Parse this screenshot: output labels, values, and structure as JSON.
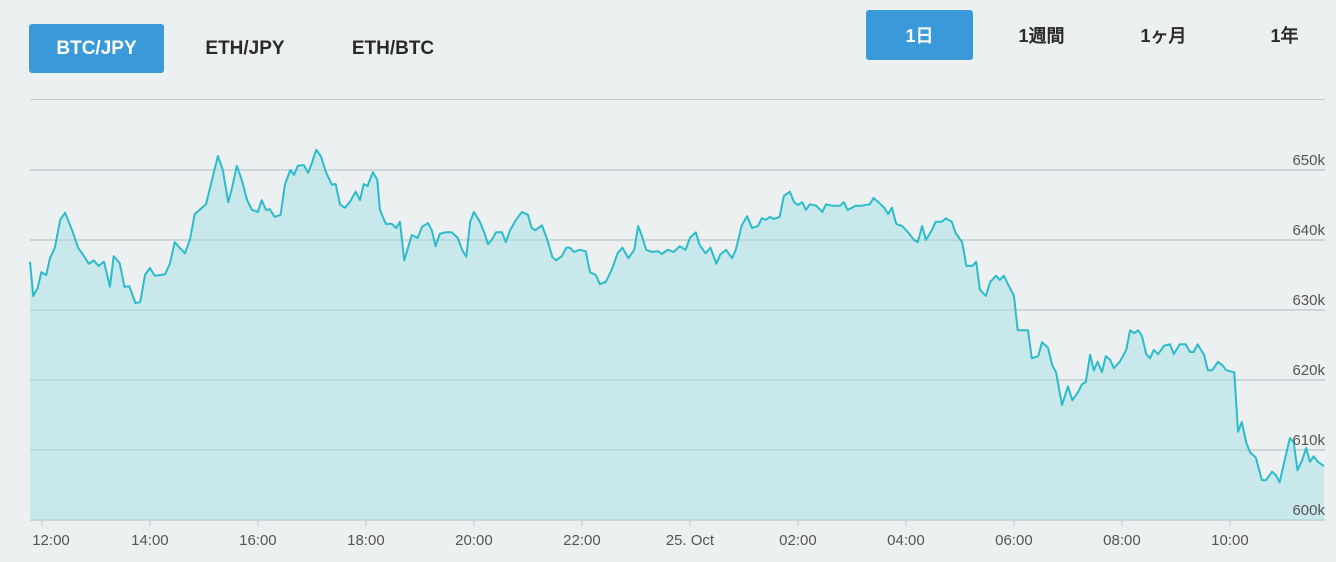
{
  "pair_tabs": [
    "BTC/JPY",
    "ETH/JPY",
    "ETH/BTC"
  ],
  "period_tabs": [
    "1日",
    "1週間",
    "1ヶ月",
    "1年"
  ],
  "chart_data": {
    "type": "area",
    "color": "#2bbccb",
    "fill": "#c4e7eb",
    "grid": true,
    "xlim": [
      11.78,
      35.76
    ],
    "xticks": [
      {
        "value": 12,
        "label": "12:00"
      },
      {
        "value": 14,
        "label": "14:00"
      },
      {
        "value": 16,
        "label": "16:00"
      },
      {
        "value": 18,
        "label": "18:00"
      },
      {
        "value": 20,
        "label": "20:00"
      },
      {
        "value": 22,
        "label": "22:00"
      },
      {
        "value": 24,
        "label": "25. Oct"
      },
      {
        "value": 26,
        "label": "02:00"
      },
      {
        "value": 28,
        "label": "04:00"
      },
      {
        "value": 30,
        "label": "06:00"
      },
      {
        "value": 32,
        "label": "08:00"
      },
      {
        "value": 34,
        "label": "10:00"
      }
    ],
    "ylim": [
      600000,
      660000
    ],
    "yticks": [
      {
        "value": 600000,
        "label": "600k"
      },
      {
        "value": 610000,
        "label": "610k"
      },
      {
        "value": 620000,
        "label": "620k"
      },
      {
        "value": 630000,
        "label": "630k"
      },
      {
        "value": 640000,
        "label": "640k"
      },
      {
        "value": 650000,
        "label": "650k"
      }
    ],
    "x": [
      11.78,
      11.84,
      11.92,
      11.99,
      12.08,
      12.15,
      12.24,
      12.34,
      12.43,
      12.56,
      12.67,
      12.78,
      12.87,
      12.96,
      13.05,
      13.15,
      13.26,
      13.33,
      13.44,
      13.53,
      13.62,
      13.73,
      13.82,
      13.91,
      14.0,
      14.09,
      14.28,
      14.37,
      14.46,
      14.55,
      14.65,
      14.74,
      14.83,
      14.92,
      15.04,
      15.15,
      15.26,
      15.35,
      15.45,
      15.52,
      15.61,
      15.7,
      15.8,
      15.89,
      16.0,
      16.07,
      16.15,
      16.22,
      16.31,
      16.42,
      16.5,
      16.6,
      16.67,
      16.74,
      16.85,
      16.93,
      17.0,
      17.08,
      17.17,
      17.26,
      17.37,
      17.44,
      17.52,
      17.61,
      17.7,
      17.81,
      17.89,
      17.96,
      18.03,
      18.13,
      18.21,
      18.26,
      18.37,
      18.48,
      18.56,
      18.63,
      18.71,
      18.78,
      18.85,
      18.96,
      19.04,
      19.15,
      19.22,
      19.29,
      19.37,
      19.48,
      19.59,
      19.7,
      19.78,
      19.86,
      19.93,
      20.0,
      20.11,
      20.19,
      20.26,
      20.33,
      20.41,
      20.52,
      20.59,
      20.67,
      20.78,
      20.89,
      21.0,
      21.07,
      21.14,
      21.26,
      21.36,
      21.45,
      21.52,
      21.63,
      21.71,
      21.78,
      21.85,
      21.96,
      22.07,
      22.15,
      22.26,
      22.33,
      22.44,
      22.55,
      22.66,
      22.75,
      22.86,
      22.97,
      23.04,
      23.11,
      23.19,
      23.3,
      23.41,
      23.48,
      23.59,
      23.7,
      23.81,
      23.92,
      24.0,
      24.11,
      24.18,
      24.29,
      24.38,
      24.49,
      24.56,
      24.67,
      24.78,
      24.85,
      24.96,
      25.06,
      25.15,
      25.26,
      25.33,
      25.41,
      25.48,
      25.55,
      25.66,
      25.74,
      25.85,
      25.93,
      26.0,
      26.08,
      26.15,
      26.22,
      26.34,
      26.45,
      26.52,
      26.63,
      26.78,
      26.85,
      26.92,
      27.0,
      27.07,
      27.18,
      27.33,
      27.4,
      27.49,
      27.6,
      27.67,
      27.74,
      27.82,
      27.93,
      28.04,
      28.15,
      28.22,
      28.3,
      28.37,
      28.48,
      28.55,
      28.66,
      28.74,
      28.85,
      28.92,
      29.04,
      29.12,
      29.23,
      29.3,
      29.37,
      29.48,
      29.56,
      29.67,
      29.74,
      29.81,
      29.89,
      30.0,
      30.07,
      30.26,
      30.33,
      30.45,
      30.52,
      30.63,
      30.71,
      30.78,
      30.89,
      31.0,
      31.08,
      31.19,
      31.26,
      31.33,
      31.41,
      31.48,
      31.55,
      31.63,
      31.7,
      31.78,
      31.85,
      31.96,
      32.08,
      32.15,
      32.23,
      32.3,
      32.37,
      32.45,
      32.52,
      32.59,
      32.67,
      32.78,
      32.89,
      32.96,
      33.07,
      33.18,
      33.26,
      33.33,
      33.4,
      33.52,
      33.59,
      33.67,
      33.78,
      33.86,
      33.93,
      34.08,
      34.15,
      34.22,
      34.3,
      34.37,
      34.48,
      34.59,
      34.67,
      34.78,
      34.85,
      34.92,
      35.03,
      35.11,
      35.18,
      35.25,
      35.34,
      35.41,
      35.48,
      35.55,
      35.63,
      35.74
    ],
    "values": [
      636900,
      632000,
      633100,
      635400,
      635000,
      637400,
      638900,
      642900,
      643900,
      641400,
      638900,
      637700,
      636600,
      637100,
      636300,
      636900,
      633300,
      637700,
      636700,
      633300,
      633400,
      631000,
      631100,
      635000,
      636000,
      634900,
      635100,
      636600,
      639700,
      638900,
      638100,
      640000,
      643700,
      644300,
      645100,
      648600,
      652000,
      650000,
      645400,
      647400,
      650600,
      648600,
      645700,
      644300,
      644000,
      645700,
      644300,
      644400,
      643300,
      643600,
      647900,
      650000,
      649300,
      650600,
      650700,
      649600,
      651000,
      652900,
      651900,
      649700,
      647900,
      648000,
      645100,
      644600,
      645400,
      646900,
      645700,
      648000,
      647700,
      649700,
      648600,
      644300,
      642300,
      642300,
      641700,
      642600,
      637100,
      638900,
      640700,
      640300,
      641900,
      642400,
      641400,
      639100,
      640900,
      641100,
      641100,
      640300,
      638600,
      637600,
      642600,
      644000,
      642600,
      641100,
      639400,
      640000,
      641100,
      641100,
      639700,
      641400,
      642900,
      644000,
      643600,
      641700,
      641400,
      642100,
      640000,
      637600,
      637100,
      637700,
      638900,
      638900,
      638300,
      638600,
      638400,
      635400,
      635000,
      633700,
      634000,
      635700,
      638100,
      638900,
      637400,
      638600,
      642000,
      640600,
      638600,
      638300,
      638400,
      638000,
      638600,
      638300,
      639100,
      638600,
      640300,
      641100,
      639300,
      638100,
      638900,
      636600,
      637900,
      638600,
      637400,
      638600,
      642100,
      643400,
      641700,
      642000,
      643100,
      642900,
      643300,
      643000,
      643300,
      646300,
      646900,
      645400,
      645000,
      645400,
      644300,
      645100,
      644900,
      644000,
      645100,
      644900,
      644900,
      645400,
      644300,
      644600,
      644900,
      644900,
      645100,
      646000,
      645400,
      644600,
      643700,
      644600,
      642300,
      642000,
      641100,
      640000,
      639700,
      642000,
      640000,
      641400,
      642600,
      642600,
      643100,
      642600,
      641000,
      639700,
      636300,
      636300,
      636900,
      632900,
      632000,
      634000,
      634900,
      634300,
      634900,
      633700,
      632000,
      627100,
      627100,
      623100,
      623400,
      625400,
      624600,
      622100,
      621100,
      616400,
      619100,
      617100,
      618300,
      619400,
      619700,
      623600,
      621400,
      622600,
      621100,
      623400,
      622900,
      621700,
      622600,
      624300,
      627100,
      626700,
      627100,
      626300,
      623700,
      623100,
      624300,
      623700,
      624900,
      625100,
      623700,
      625100,
      625100,
      624000,
      624000,
      625100,
      623600,
      621400,
      621400,
      622600,
      622100,
      621400,
      621100,
      612600,
      614000,
      611100,
      609700,
      608900,
      605700,
      605700,
      606900,
      606400,
      605400,
      609100,
      611700,
      611100,
      607100,
      608600,
      610300,
      608300,
      609100,
      608300,
      607700
    ]
  }
}
